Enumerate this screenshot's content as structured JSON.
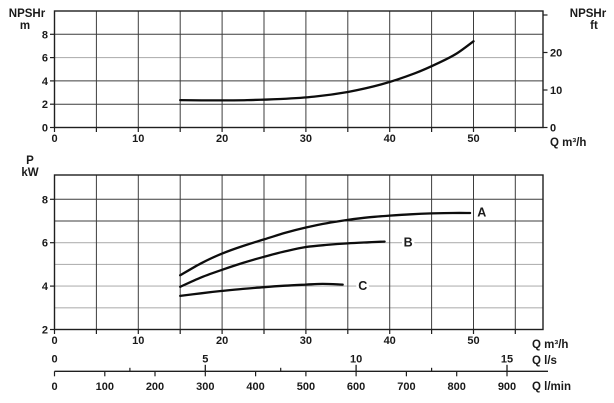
{
  "figure": {
    "colors": {
      "grid_dark": "#3d3d3d",
      "grid_light": "#b3b3b3",
      "frame": "#1f1f1f",
      "curve": "#0d0d0d",
      "text": "#1a1a1a",
      "background": "#ffffff"
    }
  },
  "chart_data": [
    {
      "id": "npshr-chart",
      "type": "line",
      "xlim": [
        0,
        58.3
      ],
      "ylim": [
        0,
        10
      ],
      "y_axis_left": {
        "title_lines": [
          "NPSHr",
          "m"
        ],
        "tick_values": [
          0,
          2,
          4,
          6,
          8
        ],
        "tick_labels": [
          "0",
          "2",
          "4",
          "6",
          "8"
        ]
      },
      "y_axis_right": {
        "title_lines": [
          "NPSHr",
          "ft"
        ],
        "tick_values_ft": [
          0,
          10,
          20,
          30
        ],
        "labeled_values_ft": [
          0,
          10,
          20
        ],
        "tick_labels_ft": [
          "0",
          "10",
          "20"
        ]
      },
      "x_axis": {
        "unit_label": "Q m³/h",
        "tick_values": [
          0,
          10,
          20,
          30,
          40,
          50
        ],
        "tick_labels": [
          "0",
          "10",
          "20",
          "30",
          "40",
          "50"
        ]
      },
      "grid": {
        "vertical_values": [
          0,
          5,
          10,
          15,
          20,
          25,
          30,
          35,
          40,
          45,
          50,
          55
        ],
        "horizontal_dark": [
          2,
          4,
          8
        ],
        "horizontal_light": [
          6
        ]
      },
      "series": [
        {
          "name": "NPSHr",
          "points": [
            [
              15,
              2.35
            ],
            [
              19,
              2.33
            ],
            [
              23,
              2.35
            ],
            [
              27,
              2.45
            ],
            [
              31,
              2.65
            ],
            [
              35,
              3.05
            ],
            [
              39,
              3.7
            ],
            [
              43,
              4.65
            ],
            [
              46,
              5.6
            ],
            [
              48,
              6.35
            ],
            [
              50,
              7.4
            ]
          ]
        }
      ]
    },
    {
      "id": "power-chart",
      "type": "line",
      "xlim": [
        0,
        58.3
      ],
      "ylim": [
        2,
        9.12
      ],
      "y_axis_left": {
        "title_lines": [
          "P",
          "kW"
        ],
        "tick_values": [
          2,
          4,
          6,
          8
        ],
        "tick_labels": [
          "2",
          "4",
          "6",
          "8"
        ]
      },
      "x_axis": {
        "unit_label": "Q m³/h",
        "tick_values": [
          0,
          10,
          20,
          30,
          40,
          50
        ],
        "tick_labels": [
          "0",
          "10",
          "20",
          "30",
          "40",
          "50"
        ]
      },
      "grid": {
        "vertical_values": [
          0,
          5,
          10,
          15,
          20,
          25,
          30,
          35,
          40,
          45,
          50,
          55
        ],
        "horizontal_dark": [
          7,
          8
        ],
        "horizontal_light": [
          3,
          4,
          5,
          6
        ]
      },
      "series": [
        {
          "name": "A",
          "label": "A",
          "label_at": [
            51.0,
            7.42
          ],
          "points": [
            [
              15,
              4.5
            ],
            [
              17.5,
              5.05
            ],
            [
              20,
              5.5
            ],
            [
              22.5,
              5.85
            ],
            [
              25,
              6.15
            ],
            [
              27.5,
              6.45
            ],
            [
              30,
              6.7
            ],
            [
              32.5,
              6.9
            ],
            [
              35,
              7.05
            ],
            [
              37.5,
              7.17
            ],
            [
              40,
              7.25
            ],
            [
              42.5,
              7.31
            ],
            [
              45,
              7.35
            ],
            [
              47.5,
              7.37
            ],
            [
              49.6,
              7.37
            ]
          ]
        },
        {
          "name": "B",
          "label": "B",
          "label_at": [
            42.2,
            6.03
          ],
          "points": [
            [
              15,
              3.97
            ],
            [
              17.5,
              4.4
            ],
            [
              20,
              4.75
            ],
            [
              22.5,
              5.07
            ],
            [
              25,
              5.35
            ],
            [
              27.5,
              5.6
            ],
            [
              30,
              5.8
            ],
            [
              32.5,
              5.9
            ],
            [
              35,
              5.97
            ],
            [
              37.5,
              6.02
            ],
            [
              39.4,
              6.05
            ]
          ]
        },
        {
          "name": "C",
          "label": "C",
          "label_at": [
            36.8,
            4.02
          ],
          "points": [
            [
              15,
              3.55
            ],
            [
              17.5,
              3.67
            ],
            [
              20,
              3.78
            ],
            [
              22.5,
              3.87
            ],
            [
              25,
              3.95
            ],
            [
              27.5,
              4.02
            ],
            [
              30,
              4.07
            ],
            [
              32,
              4.1
            ],
            [
              34.4,
              4.07
            ]
          ]
        }
      ],
      "secondary_x_axes": [
        {
          "unit_label": "Q l/s",
          "factor_to_m3h": 3.6,
          "origin_label": "0",
          "labeled_ticks": [
            5,
            10,
            15
          ],
          "tick_labels": [
            "5",
            "10",
            "15"
          ],
          "minor_ticks": [
            2.5,
            7.5,
            12.5
          ]
        },
        {
          "unit_label": "Q l/min",
          "factor_to_m3h": 0.06,
          "labeled_ticks": [
            0,
            100,
            200,
            300,
            400,
            500,
            600,
            700,
            800,
            900
          ],
          "tick_labels": [
            "0",
            "100",
            "200",
            "300",
            "400",
            "500",
            "600",
            "700",
            "800",
            "900"
          ]
        }
      ]
    }
  ]
}
